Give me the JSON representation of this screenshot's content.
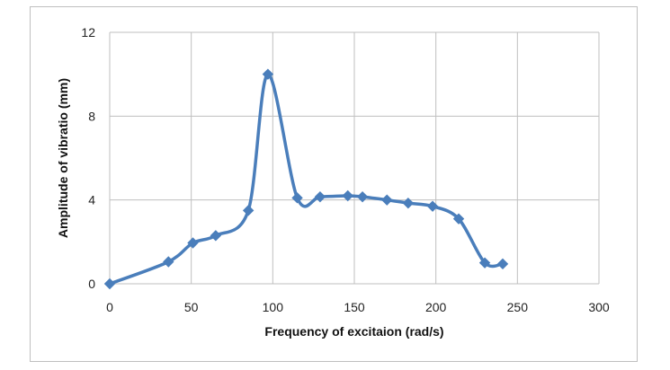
{
  "chart_data": {
    "type": "line",
    "title": "",
    "xlabel": "Frequency  of excitaion (rad/s)",
    "ylabel": "Amplitude of vibratio (mm)",
    "xlim": [
      0,
      300
    ],
    "ylim": [
      0,
      12
    ],
    "x_ticks": [
      0,
      50,
      100,
      150,
      200,
      250,
      300
    ],
    "y_ticks": [
      0,
      4,
      8,
      12
    ],
    "grid": true,
    "legend": "none",
    "series": [
      {
        "color": "#4a7ebb",
        "marker": "diamond",
        "smooth": true,
        "x": [
          0,
          36,
          51,
          65,
          85,
          97,
          115,
          129,
          146,
          155,
          170,
          183,
          198,
          214,
          230,
          241
        ],
        "y": [
          0,
          1.05,
          1.95,
          2.3,
          3.5,
          10.0,
          4.1,
          4.15,
          4.2,
          4.15,
          4.0,
          3.85,
          3.7,
          3.1,
          1.0,
          0.95
        ]
      }
    ]
  }
}
